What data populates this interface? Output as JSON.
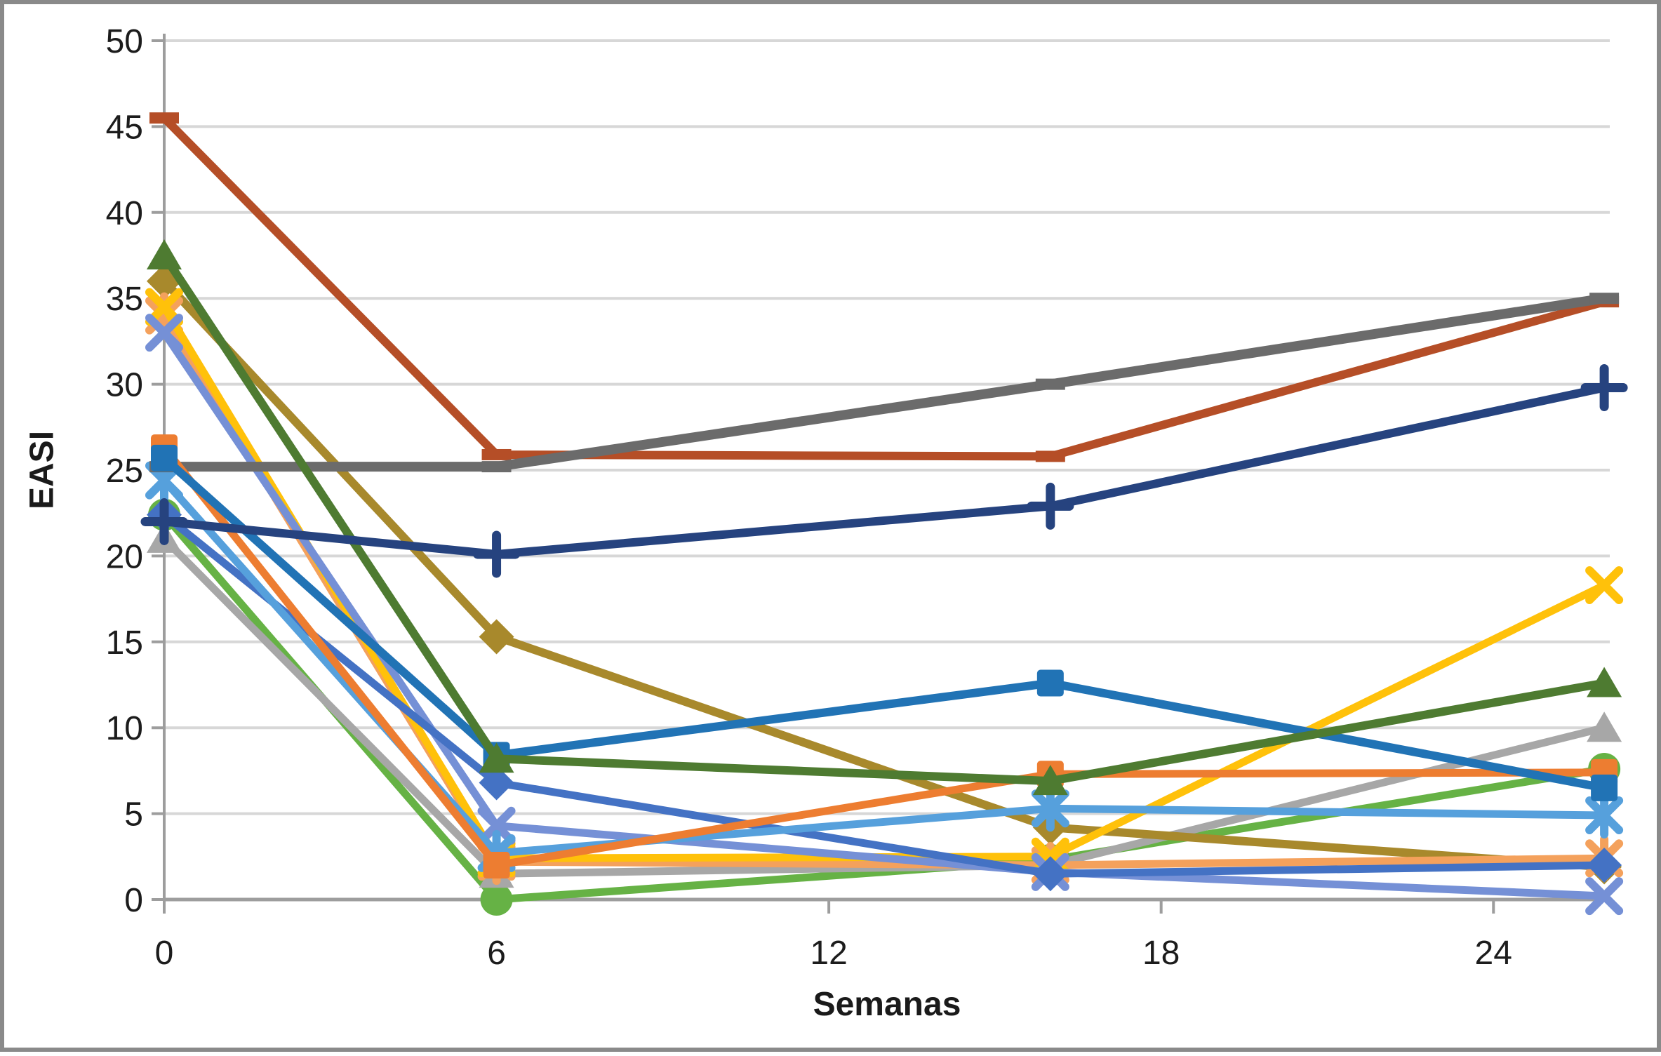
{
  "frame": {
    "background": "#ffffff",
    "border_color": "#8a8a8a"
  },
  "chart_data": {
    "type": "line",
    "title": "",
    "xlabel": "Semanas",
    "ylabel": "EASI",
    "x_weeks": [
      0,
      6,
      16,
      26
    ],
    "x_ticks": [
      0,
      6,
      12,
      18,
      24
    ],
    "x_tick_labels": [
      "0",
      "6",
      "12",
      "18",
      "24"
    ],
    "y_ticks": [
      0,
      5,
      10,
      15,
      20,
      25,
      30,
      35,
      40,
      45,
      50
    ],
    "y_tick_labels": [
      "0",
      "5",
      "10",
      "15",
      "20",
      "25",
      "30",
      "35",
      "40",
      "45",
      "50"
    ],
    "xlim": [
      0,
      26.1
    ],
    "ylim": [
      0,
      50
    ],
    "grid": "horizontal",
    "gridline_color": "#d7d7d7",
    "axis_color": "#9d9d9d",
    "legend": "none",
    "series": [
      {
        "name": "green-circle",
        "color": "#66B245",
        "marker": "circle",
        "line_width": 11,
        "values": [
          22.4,
          0.0,
          2.3,
          7.6
        ]
      },
      {
        "name": "silver-triangle",
        "color": "#A7A7A7",
        "marker": "triangle",
        "line_width": 11,
        "values": [
          21.0,
          1.5,
          2.0,
          10.0
        ]
      },
      {
        "name": "olive-diamond",
        "color": "#A8892C",
        "marker": "diamond",
        "line_width": 12,
        "values": [
          36.0,
          15.3,
          4.2,
          1.9
        ]
      },
      {
        "name": "lightorange-asterisk",
        "color": "#F4A15C",
        "marker": "asterisk",
        "line_width": 11,
        "values": [
          34.0,
          2.2,
          2.0,
          2.4
        ]
      },
      {
        "name": "gold-x",
        "color": "#FFC10A",
        "marker": "x",
        "line_width": 11,
        "values": [
          34.5,
          2.4,
          2.5,
          18.3
        ]
      },
      {
        "name": "cornflower-x",
        "color": "#7590D6",
        "marker": "x",
        "line_width": 11,
        "values": [
          33.0,
          4.3,
          1.6,
          0.2
        ]
      },
      {
        "name": "royal-diamond",
        "color": "#4472C4",
        "marker": "diamond",
        "line_width": 11,
        "values": [
          22.4,
          6.8,
          1.5,
          2.0
        ]
      },
      {
        "name": "sky-asterisk",
        "color": "#56A0DC",
        "marker": "asterisk",
        "line_width": 11,
        "values": [
          24.4,
          2.7,
          5.3,
          4.9
        ]
      },
      {
        "name": "sienna-dash",
        "color": "#B54E27",
        "marker": "dash",
        "line_width": 12,
        "values": [
          45.5,
          25.9,
          25.8,
          34.8
        ]
      },
      {
        "name": "gray-dash",
        "color": "#6B6B6B",
        "marker": "dash",
        "line_width": 14,
        "values": [
          25.2,
          25.2,
          30.0,
          35.0
        ]
      },
      {
        "name": "orange-square",
        "color": "#ED7D31",
        "marker": "square",
        "line_width": 11,
        "values": [
          26.3,
          2.0,
          7.3,
          7.4
        ]
      },
      {
        "name": "steel-square",
        "color": "#2173B5",
        "marker": "square",
        "line_width": 12,
        "values": [
          25.7,
          8.4,
          12.6,
          6.5
        ]
      },
      {
        "name": "darkgreen-triangle",
        "color": "#4E7B31",
        "marker": "triangle",
        "line_width": 12,
        "values": [
          37.5,
          8.2,
          6.9,
          12.6
        ]
      },
      {
        "name": "navy-plus",
        "color": "#26437F",
        "marker": "plus",
        "line_width": 12,
        "values": [
          22.0,
          20.1,
          22.9,
          29.8
        ]
      }
    ]
  }
}
